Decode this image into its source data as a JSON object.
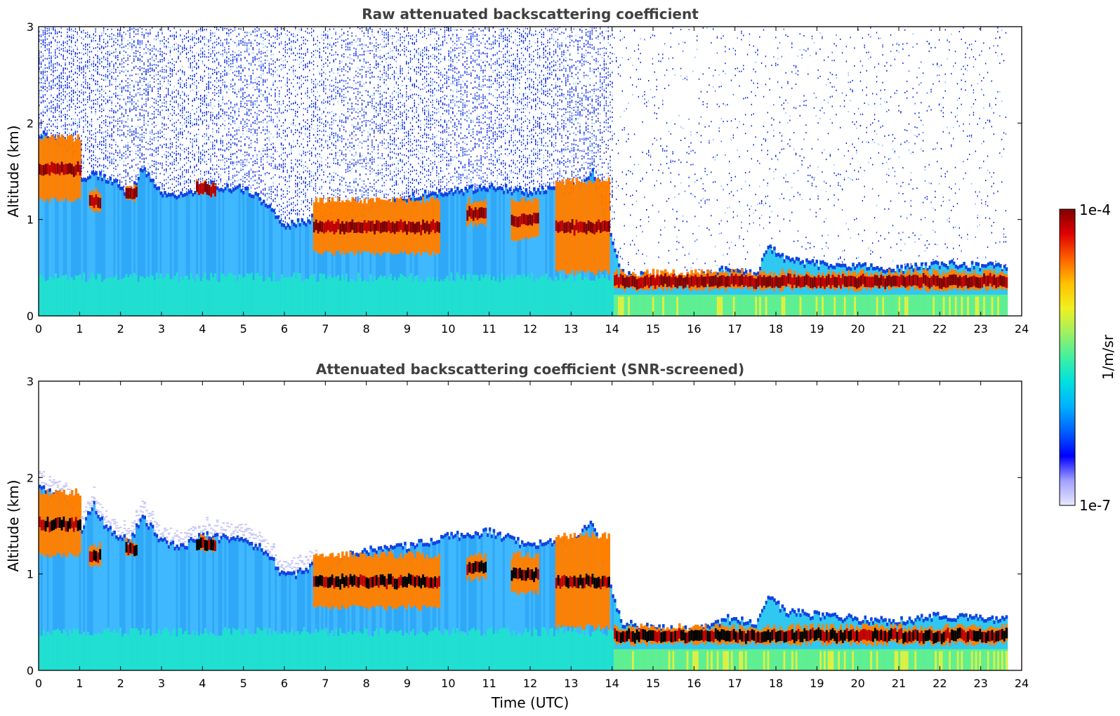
{
  "chart_data": [
    {
      "type": "heatmap",
      "title": "Raw attenuated backscattering coefficient",
      "xlabel": "",
      "ylabel": "Altitude (km)",
      "xlim": [
        0,
        24
      ],
      "ylim": [
        0,
        3
      ],
      "xticks": [
        "0",
        "1",
        "2",
        "3",
        "4",
        "5",
        "6",
        "7",
        "8",
        "9",
        "10",
        "11",
        "12",
        "13",
        "14",
        "15",
        "16",
        "17",
        "18",
        "19",
        "20",
        "21",
        "22",
        "23",
        "24"
      ],
      "yticks": [
        "0",
        "1",
        "2",
        "3"
      ],
      "data_end_time": 23.65,
      "noise": "strong",
      "boundary_layer_top_km": [
        [
          0.0,
          1.9
        ],
        [
          0.3,
          1.85
        ],
        [
          0.8,
          1.75
        ],
        [
          1.0,
          1.4
        ],
        [
          1.3,
          1.5
        ],
        [
          1.6,
          1.45
        ],
        [
          2.0,
          1.35
        ],
        [
          2.2,
          1.25
        ],
        [
          2.5,
          1.55
        ],
        [
          3.0,
          1.3
        ],
        [
          3.5,
          1.25
        ],
        [
          4.0,
          1.38
        ],
        [
          4.5,
          1.35
        ],
        [
          5.0,
          1.33
        ],
        [
          5.5,
          1.2
        ],
        [
          6.0,
          0.95
        ],
        [
          6.5,
          1.0
        ],
        [
          6.7,
          1.05
        ],
        [
          7.0,
          0.9
        ],
        [
          7.5,
          1.0
        ],
        [
          8.0,
          1.1
        ],
        [
          9.0,
          1.25
        ],
        [
          10.0,
          1.3
        ],
        [
          11.0,
          1.35
        ],
        [
          12.0,
          1.3
        ],
        [
          12.5,
          1.35
        ],
        [
          13.0,
          1.3
        ],
        [
          13.5,
          1.5
        ],
        [
          13.8,
          1.1
        ],
        [
          14.2,
          0.45
        ],
        [
          15.0,
          0.42
        ],
        [
          16.0,
          0.4
        ],
        [
          16.8,
          0.5
        ],
        [
          17.5,
          0.45
        ],
        [
          17.8,
          0.75
        ],
        [
          18.2,
          0.6
        ],
        [
          19.0,
          0.55
        ],
        [
          20.0,
          0.52
        ],
        [
          21.0,
          0.5
        ],
        [
          22.0,
          0.55
        ],
        [
          23.65,
          0.52
        ]
      ],
      "aerosol_layers_km": [
        {
          "t": [
            0.0,
            1.0
          ],
          "bottom": 1.2,
          "top": 1.85
        },
        {
          "t": [
            1.2,
            1.5
          ],
          "bottom": 1.1,
          "top": 1.3
        },
        {
          "t": [
            2.1,
            2.4
          ],
          "bottom": 1.2,
          "top": 1.35
        },
        {
          "t": [
            3.8,
            4.3
          ],
          "bottom": 1.25,
          "top": 1.38
        },
        {
          "t": [
            6.7,
            9.8
          ],
          "bottom": 0.65,
          "top": 1.2
        },
        {
          "t": [
            10.4,
            10.9
          ],
          "bottom": 0.95,
          "top": 1.2
        },
        {
          "t": [
            11.5,
            12.2
          ],
          "bottom": 0.8,
          "top": 1.2
        },
        {
          "t": [
            12.6,
            13.9
          ],
          "bottom": 0.45,
          "top": 1.4
        },
        {
          "t": [
            14.0,
            23.65
          ],
          "bottom": 0.28,
          "top": 0.45
        }
      ]
    },
    {
      "type": "heatmap",
      "title": "Attenuated backscattering coefficient (SNR-screened)",
      "xlabel": "Time (UTC)",
      "ylabel": "Altitude (km)",
      "xlim": [
        0,
        24
      ],
      "ylim": [
        0,
        3
      ],
      "xticks": [
        "0",
        "1",
        "2",
        "3",
        "4",
        "5",
        "6",
        "7",
        "8",
        "9",
        "10",
        "11",
        "12",
        "13",
        "14",
        "15",
        "16",
        "17",
        "18",
        "19",
        "20",
        "21",
        "22",
        "23",
        "24"
      ],
      "yticks": [
        "0",
        "1",
        "2",
        "3"
      ],
      "data_end_time": 23.65,
      "noise": "screened",
      "boundary_layer_top_km": [
        [
          0.0,
          1.9
        ],
        [
          0.3,
          1.85
        ],
        [
          0.8,
          1.75
        ],
        [
          1.0,
          1.4
        ],
        [
          1.3,
          1.75
        ],
        [
          1.6,
          1.5
        ],
        [
          2.0,
          1.4
        ],
        [
          2.2,
          1.35
        ],
        [
          2.5,
          1.6
        ],
        [
          3.0,
          1.35
        ],
        [
          3.5,
          1.3
        ],
        [
          4.0,
          1.42
        ],
        [
          4.5,
          1.38
        ],
        [
          5.0,
          1.38
        ],
        [
          5.5,
          1.25
        ],
        [
          6.0,
          0.98
        ],
        [
          6.5,
          1.05
        ],
        [
          6.7,
          1.1
        ],
        [
          7.0,
          1.05
        ],
        [
          7.5,
          1.2
        ],
        [
          8.0,
          1.25
        ],
        [
          9.0,
          1.3
        ],
        [
          10.0,
          1.4
        ],
        [
          11.0,
          1.45
        ],
        [
          12.0,
          1.3
        ],
        [
          12.5,
          1.35
        ],
        [
          13.0,
          1.35
        ],
        [
          13.5,
          1.55
        ],
        [
          13.8,
          1.1
        ],
        [
          14.2,
          0.5
        ],
        [
          15.0,
          0.45
        ],
        [
          16.0,
          0.42
        ],
        [
          16.8,
          0.55
        ],
        [
          17.5,
          0.5
        ],
        [
          17.8,
          0.78
        ],
        [
          18.2,
          0.62
        ],
        [
          19.0,
          0.58
        ],
        [
          20.0,
          0.55
        ],
        [
          21.0,
          0.52
        ],
        [
          22.0,
          0.58
        ],
        [
          23.65,
          0.55
        ]
      ],
      "aerosol_layers_km": [
        {
          "t": [
            0.0,
            1.0
          ],
          "bottom": 1.2,
          "top": 1.85
        },
        {
          "t": [
            1.2,
            1.5
          ],
          "bottom": 1.1,
          "top": 1.3
        },
        {
          "t": [
            2.1,
            2.4
          ],
          "bottom": 1.2,
          "top": 1.35
        },
        {
          "t": [
            3.8,
            4.3
          ],
          "bottom": 1.25,
          "top": 1.38
        },
        {
          "t": [
            6.7,
            9.8
          ],
          "bottom": 0.65,
          "top": 1.2
        },
        {
          "t": [
            10.4,
            10.9
          ],
          "bottom": 0.95,
          "top": 1.2
        },
        {
          "t": [
            11.5,
            12.2
          ],
          "bottom": 0.8,
          "top": 1.2
        },
        {
          "t": [
            12.6,
            13.9
          ],
          "bottom": 0.45,
          "top": 1.4
        },
        {
          "t": [
            14.0,
            23.65
          ],
          "bottom": 0.28,
          "top": 0.45
        }
      ]
    }
  ],
  "colorbar": {
    "label": "1/m/sr",
    "max_label": "1e-4",
    "min_label": "1e-7",
    "scale": "log",
    "colors": [
      "#e8e8ff",
      "#a0a0ff",
      "#0000ff",
      "#0060ff",
      "#00b0ff",
      "#00e0e0",
      "#40f0a0",
      "#a0f060",
      "#f0f020",
      "#ffc000",
      "#ff6000",
      "#e00000",
      "#800000"
    ]
  }
}
